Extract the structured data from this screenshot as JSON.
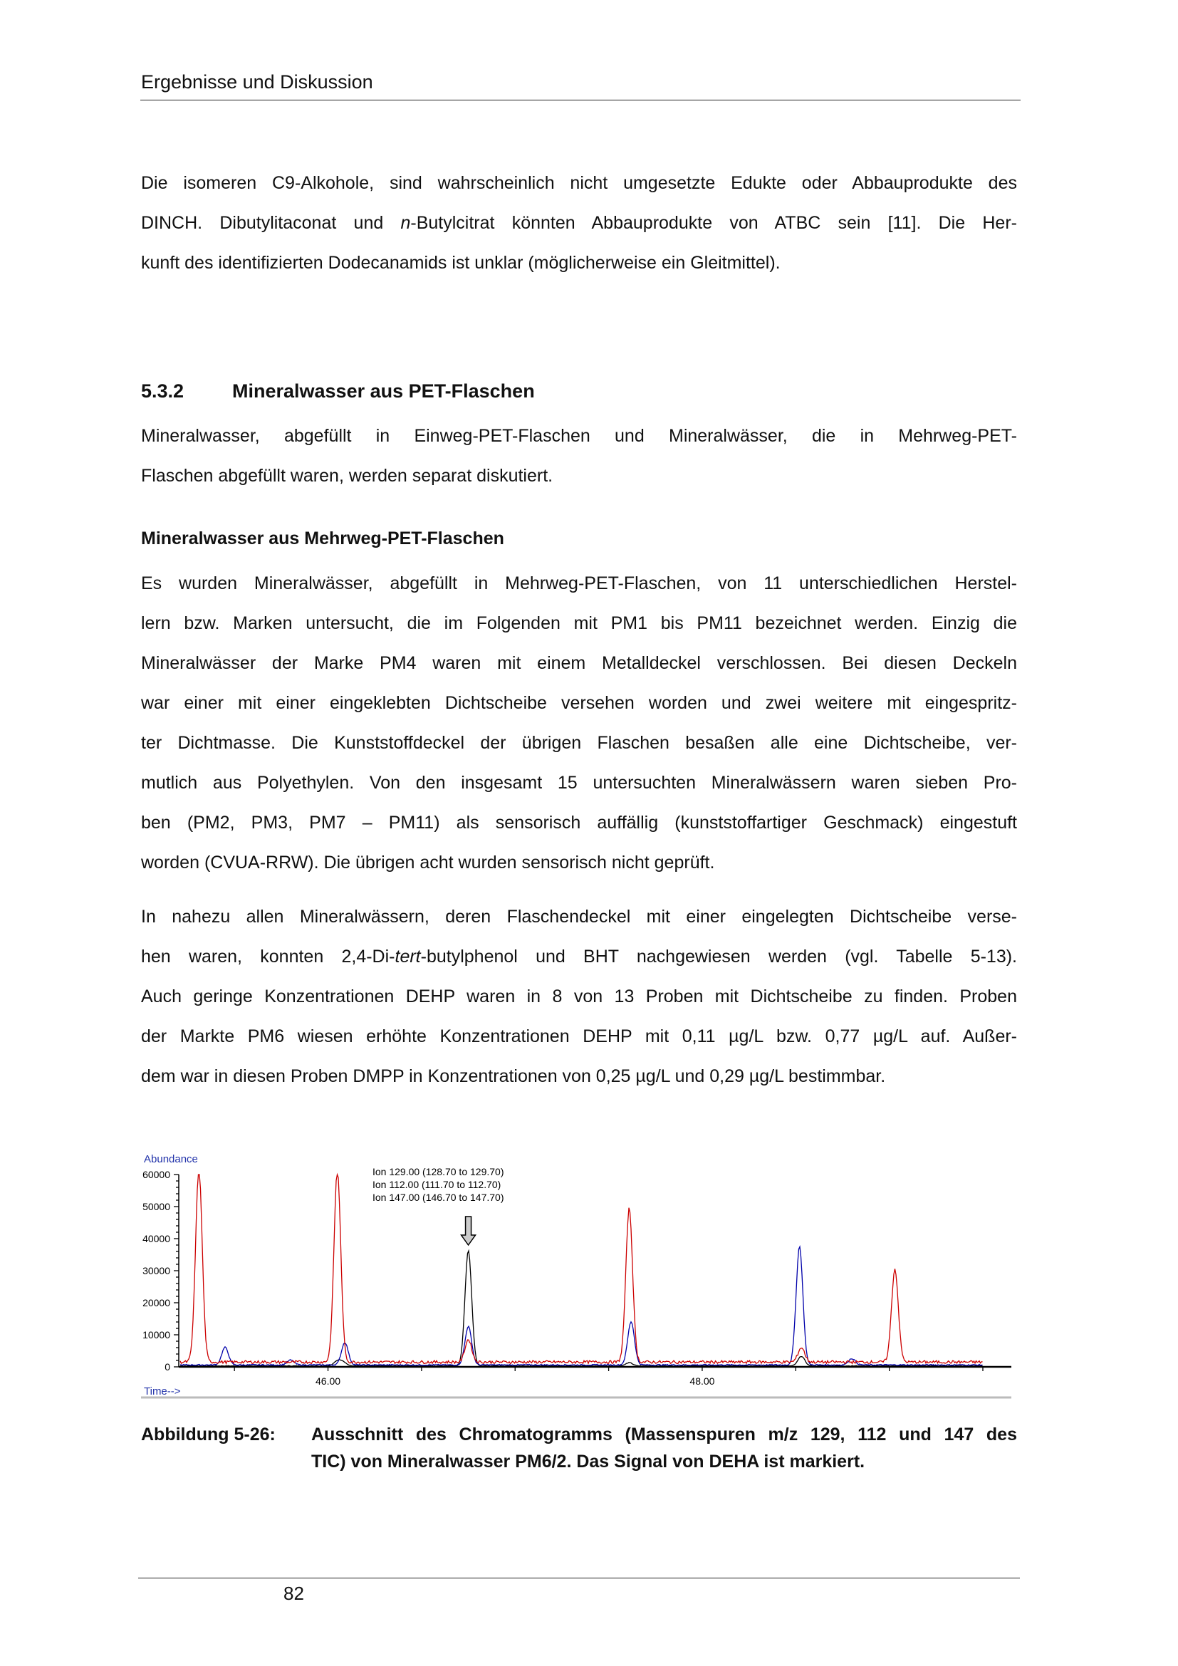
{
  "header": {
    "running_title": "Ergebnisse und Diskussion"
  },
  "paragraph1": [
    [
      "Die isomeren C9-Alkohole, sind wahrscheinlich nicht umgesetzte Edukte oder Abbauprodukte des"
    ],
    [
      "DINCH. Dibutylitaconat und ",
      {
        "i": "n"
      },
      "-Butylcitrat könnten Abbauprodukte von ATBC sein [11]. Die Her-"
    ],
    [
      "kunft des identifizierten Dodecanamids ist unklar (möglicherweise ein Gleitmittel)."
    ]
  ],
  "section": {
    "number": "5.3.2",
    "title": "Mineralwasser aus PET-Flaschen"
  },
  "paragraph2": [
    [
      "Mineralwasser, abgefüllt in Einweg-PET-Flaschen und Mineralwässer, die in Mehrweg-PET-"
    ],
    [
      "Flaschen abgefüllt waren, werden separat diskutiert."
    ]
  ],
  "subheading": "Mineralwasser aus Mehrweg-PET-Flaschen",
  "paragraph3": [
    [
      "Es wurden Mineralwässer, abgefüllt in Mehrweg-PET-Flaschen, von 11 unterschiedlichen Herstel-"
    ],
    [
      "lern bzw. Marken untersucht, die im Folgenden mit PM1 bis PM11 bezeichnet werden. Einzig die"
    ],
    [
      "Mineralwässer der Marke PM4 waren mit einem Metalldeckel verschlossen. Bei diesen Deckeln"
    ],
    [
      "war einer mit einer eingeklebten Dichtscheibe versehen worden und zwei weitere mit eingespritz-"
    ],
    [
      "ter Dichtmasse. Die Kunststoffdeckel der übrigen Flaschen besaßen alle eine Dichtscheibe, ver-"
    ],
    [
      "mutlich aus Polyethylen. Von den insgesamt 15 untersuchten Mineralwässern waren sieben Pro-"
    ],
    [
      "ben (PM2, PM3, PM7 – PM11) als sensorisch auffällig (kunststoffartiger Geschmack) eingestuft"
    ],
    [
      "worden (CVUA-RRW). Die übrigen acht wurden sensorisch nicht geprüft."
    ]
  ],
  "paragraph4": [
    [
      "In nahezu allen Mineralwässern, deren Flaschendeckel mit einer eingelegten Dichtscheibe verse-"
    ],
    [
      "hen waren, konnten 2,4-Di-",
      {
        "i": "tert"
      },
      "-butylphenol und BHT nachgewiesen werden (vgl. Tabelle 5-13)."
    ],
    [
      "Auch geringe Konzentrationen DEHP waren in 8 von 13 Proben mit Dichtscheibe zu finden. Proben"
    ],
    [
      "der Markte PM6 wiesen erhöhte Konzentrationen DEHP mit 0,11 µg/L bzw. 0,77 µg/L auf. Außer-"
    ],
    [
      "dem war in diesen Proben DMPP in Konzentrationen von 0,25 µg/L und 0,29 µg/L bestimmbar."
    ]
  ],
  "chart_data": {
    "type": "line",
    "ylabel": "Abundance",
    "xlabel": "Time-->",
    "xlim": [
      45.21,
      49.5
    ],
    "ylim": [
      0,
      60000
    ],
    "yticks": [
      "0",
      "10000",
      "20000",
      "30000",
      "40000",
      "50000",
      "60000"
    ],
    "xticks": [
      {
        "value": 46.0,
        "label": "46.00"
      },
      {
        "value": 48.0,
        "label": "48.00"
      }
    ],
    "grid": false,
    "legend_position": "top-center",
    "series": [
      {
        "name": "Ion 129.00 (128.70 to 129.70)",
        "color": "#000000",
        "baseline": 300,
        "peaks": {
          "x": [
            46.05,
            46.08,
            46.75,
            47.61,
            48.53
          ],
          "y": [
            1500,
            1200,
            36000,
            1000,
            3000
          ]
        }
      },
      {
        "name": "Ion 112.00 (111.70 to 112.70)",
        "color": "#0000aa",
        "baseline": 600,
        "peaks": {
          "x": [
            45.45,
            45.8,
            46.09,
            46.75,
            47.62,
            48.52,
            48.8
          ],
          "y": [
            5500,
            1500,
            7000,
            12000,
            13500,
            37000,
            2000
          ]
        }
      },
      {
        "name": "Ion 147.00 (146.70 to 147.70)",
        "color": "#cc0000",
        "baseline": 1500,
        "peaks": {
          "x": [
            45.31,
            46.05,
            46.75,
            47.61,
            48.53,
            49.03
          ],
          "y": [
            60000,
            60000,
            7000,
            48000,
            4500,
            29000
          ]
        }
      }
    ],
    "annotation": {
      "type": "arrow",
      "x": 46.75,
      "target": "DEHA"
    }
  },
  "caption": {
    "label": "Abbildung 5-26:",
    "line1": "Ausschnitt des Chromatogramms (Massenspuren m/z 129, 112 und 147 des",
    "line2": "TIC) von Mineralwasser PM6/2. Das Signal von DEHA ist markiert."
  },
  "footer": {
    "page_number": "82"
  }
}
